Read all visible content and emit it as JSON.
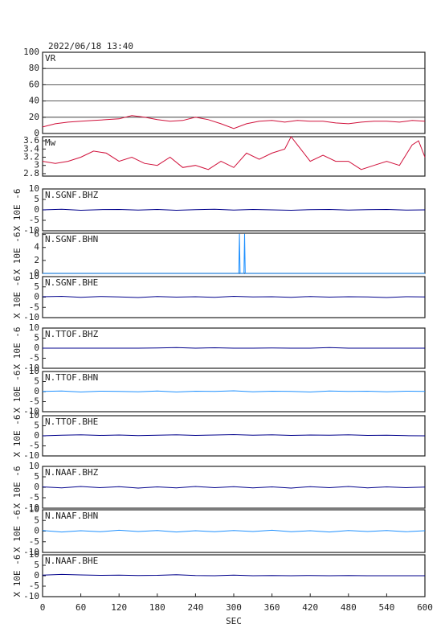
{
  "chart_data": [
    {
      "type": "line",
      "title": "2022/06/18 13:40",
      "label": "VR",
      "color": "#d0103a",
      "grid": true,
      "x": [
        0,
        20,
        40,
        60,
        80,
        100,
        120,
        140,
        160,
        180,
        200,
        220,
        240,
        260,
        280,
        300,
        320,
        340,
        360,
        380,
        400,
        420,
        440,
        460,
        480,
        500,
        520,
        540,
        560,
        580,
        600
      ],
      "values": [
        8,
        12,
        14,
        15,
        16,
        17,
        18,
        22,
        20,
        17,
        15,
        16,
        20,
        17,
        12,
        6,
        12,
        15,
        16,
        14,
        16,
        15,
        15,
        13,
        12,
        14,
        15,
        15,
        14,
        16,
        15
      ],
      "xlim": [
        0,
        600
      ],
      "ylim": [
        0,
        100
      ],
      "yticks": [
        0,
        20,
        40,
        60,
        80,
        100
      ]
    },
    {
      "type": "line",
      "label": "Mw",
      "color": "#d0103a",
      "x": [
        0,
        20,
        40,
        60,
        80,
        100,
        120,
        140,
        160,
        180,
        200,
        220,
        240,
        260,
        280,
        300,
        320,
        340,
        360,
        380,
        390,
        400,
        420,
        440,
        460,
        480,
        500,
        520,
        540,
        560,
        580,
        590,
        600
      ],
      "values": [
        3.1,
        3.05,
        3.1,
        3.2,
        3.35,
        3.3,
        3.1,
        3.2,
        3.05,
        3.0,
        3.2,
        2.95,
        3.0,
        2.9,
        3.1,
        2.95,
        3.3,
        3.15,
        3.3,
        3.4,
        3.7,
        3.5,
        3.1,
        3.25,
        3.1,
        3.1,
        2.9,
        3.0,
        3.1,
        3.0,
        3.5,
        3.6,
        3.2
      ],
      "xlim": [
        0,
        600
      ],
      "ylim": [
        2.74,
        3.7
      ],
      "yticks": [
        2.8,
        3,
        3.2,
        3.4,
        3.6
      ]
    },
    {
      "type": "line",
      "label": "N.SGNF.BHZ",
      "ylabel": "X 10E -6",
      "color": "#00008b",
      "x": [
        0,
        30,
        60,
        90,
        120,
        150,
        180,
        210,
        240,
        270,
        300,
        330,
        360,
        390,
        420,
        450,
        480,
        510,
        540,
        570,
        600
      ],
      "values": [
        0,
        0.3,
        -0.2,
        0.1,
        0.2,
        -0.1,
        0.2,
        -0.2,
        0.1,
        0.3,
        -0.1,
        0.2,
        0,
        -0.2,
        0.1,
        0.2,
        -0.1,
        0.1,
        0.2,
        -0.1,
        0
      ],
      "xlim": [
        0,
        600
      ],
      "ylim": [
        -10,
        10
      ],
      "yticks": [
        -10,
        -5,
        0,
        5,
        10
      ]
    },
    {
      "type": "line",
      "label": "N.SGNF.BHN",
      "ylabel": "X 10E -6",
      "color": "#1e90ff",
      "x": [
        0,
        100,
        200,
        300,
        308,
        309,
        310,
        316,
        317,
        318,
        400,
        500,
        600
      ],
      "values": [
        0,
        0,
        0,
        0,
        0,
        6.1,
        0,
        0,
        6.1,
        0,
        0,
        0,
        0
      ],
      "xlim": [
        0,
        600
      ],
      "ylim": [
        0,
        6.2
      ],
      "yticks": [
        0,
        2,
        4,
        6
      ]
    },
    {
      "type": "line",
      "label": "N.SGNF.BHE",
      "ylabel": "X 10E -6",
      "color": "#00008b",
      "x": [
        0,
        30,
        60,
        90,
        120,
        150,
        180,
        210,
        240,
        270,
        300,
        330,
        360,
        390,
        420,
        450,
        480,
        510,
        540,
        570,
        600
      ],
      "values": [
        0.2,
        0.4,
        -0.1,
        0.3,
        0.1,
        -0.2,
        0.3,
        0,
        0.2,
        -0.1,
        0.4,
        0.1,
        0.2,
        -0.1,
        0.3,
        0,
        0.2,
        0.1,
        -0.2,
        0.2,
        0.1
      ],
      "xlim": [
        0,
        600
      ],
      "ylim": [
        -10,
        10
      ],
      "yticks": [
        -10,
        -5,
        0,
        5,
        10
      ]
    },
    {
      "type": "line",
      "label": "N.TTOF.BHZ",
      "ylabel": "X 10E -6",
      "color": "#00008b",
      "x": [
        0,
        30,
        60,
        90,
        120,
        150,
        180,
        210,
        240,
        270,
        300,
        330,
        360,
        390,
        420,
        450,
        480,
        510,
        540,
        570,
        600
      ],
      "values": [
        0,
        0,
        0,
        0,
        0,
        0,
        0.1,
        0.3,
        0,
        0.2,
        0,
        0,
        0.1,
        0,
        0,
        0.3,
        0,
        0,
        0,
        0,
        0
      ],
      "xlim": [
        0,
        600
      ],
      "ylim": [
        -10,
        10
      ],
      "yticks": [
        -10,
        -5,
        0,
        5,
        10
      ]
    },
    {
      "type": "line",
      "label": "N.TTOF.BHN",
      "ylabel": "X 10E -6",
      "color": "#1e90ff",
      "x": [
        0,
        30,
        60,
        90,
        120,
        150,
        180,
        210,
        240,
        270,
        300,
        330,
        360,
        390,
        420,
        450,
        480,
        510,
        540,
        570,
        600
      ],
      "values": [
        0.1,
        0.3,
        -0.2,
        0.2,
        0.1,
        -0.1,
        0.3,
        -0.2,
        0.2,
        0.1,
        0.4,
        -0.1,
        0.2,
        0.1,
        -0.2,
        0.3,
        0.1,
        0.2,
        -0.1,
        0.2,
        0.1
      ],
      "xlim": [
        0,
        600
      ],
      "ylim": [
        -10,
        10
      ],
      "yticks": [
        -10,
        -5,
        0,
        5,
        10
      ]
    },
    {
      "type": "line",
      "label": "N.TTOF.BHE",
      "ylabel": "X 10E -6",
      "color": "#00008b",
      "x": [
        0,
        30,
        60,
        90,
        120,
        150,
        180,
        210,
        240,
        270,
        300,
        330,
        360,
        390,
        420,
        450,
        480,
        510,
        540,
        570,
        600
      ],
      "values": [
        0,
        0.3,
        0.5,
        0.2,
        0.4,
        0.1,
        0.3,
        0.5,
        0.2,
        0.4,
        0.6,
        0.3,
        0.5,
        0.2,
        0.4,
        0.3,
        0.5,
        0.2,
        0.3,
        0.1,
        0
      ],
      "xlim": [
        0,
        600
      ],
      "ylim": [
        -10,
        10
      ],
      "yticks": [
        -10,
        -5,
        0,
        5,
        10
      ]
    },
    {
      "type": "line",
      "label": "N.NAAF.BHZ",
      "ylabel": "X 10E -6",
      "color": "#00008b",
      "x": [
        0,
        30,
        60,
        90,
        120,
        150,
        180,
        210,
        240,
        270,
        300,
        330,
        360,
        390,
        420,
        450,
        480,
        510,
        540,
        570,
        600
      ],
      "values": [
        0.2,
        -0.3,
        0.4,
        -0.2,
        0.3,
        -0.4,
        0.2,
        -0.3,
        0.4,
        -0.2,
        0.3,
        -0.3,
        0.2,
        -0.4,
        0.3,
        -0.2,
        0.4,
        -0.3,
        0.2,
        -0.2,
        0.1
      ],
      "xlim": [
        0,
        600
      ],
      "ylim": [
        -10,
        10
      ],
      "yticks": [
        -10,
        -5,
        0,
        5,
        10
      ]
    },
    {
      "type": "line",
      "label": "N.NAAF.BHN",
      "ylabel": "X 10E -6",
      "color": "#1e90ff",
      "x": [
        0,
        30,
        60,
        90,
        120,
        150,
        180,
        210,
        240,
        270,
        300,
        330,
        360,
        390,
        420,
        450,
        480,
        510,
        540,
        570,
        600
      ],
      "values": [
        0.3,
        -0.4,
        0.2,
        -0.3,
        0.4,
        -0.2,
        0.3,
        -0.4,
        0.2,
        -0.3,
        0.3,
        -0.2,
        0.4,
        -0.3,
        0.2,
        -0.4,
        0.3,
        -0.2,
        0.3,
        -0.3,
        0.2
      ],
      "xlim": [
        0,
        600
      ],
      "ylim": [
        -10,
        10
      ],
      "yticks": [
        -10,
        -5,
        0,
        5,
        10
      ]
    },
    {
      "type": "line",
      "label": "N.NAAF.BHE",
      "ylabel": "X 10E -6",
      "color": "#00008b",
      "xlabel": "SEC",
      "x": [
        0,
        30,
        60,
        90,
        120,
        150,
        180,
        210,
        240,
        270,
        300,
        330,
        360,
        390,
        420,
        450,
        480,
        510,
        540,
        570,
        600
      ],
      "values": [
        0.3,
        0.6,
        0.4,
        0.2,
        0.3,
        0.1,
        0.2,
        0.5,
        0.1,
        0,
        0.3,
        0,
        0.1,
        0,
        0.1,
        0,
        0.1,
        0,
        0,
        0,
        0
      ],
      "xlim": [
        0,
        600
      ],
      "ylim": [
        -10,
        10
      ],
      "yticks": [
        -10,
        -5,
        0,
        5,
        10
      ],
      "xticks": [
        0,
        60,
        120,
        180,
        240,
        300,
        360,
        420,
        480,
        540,
        600
      ]
    }
  ]
}
